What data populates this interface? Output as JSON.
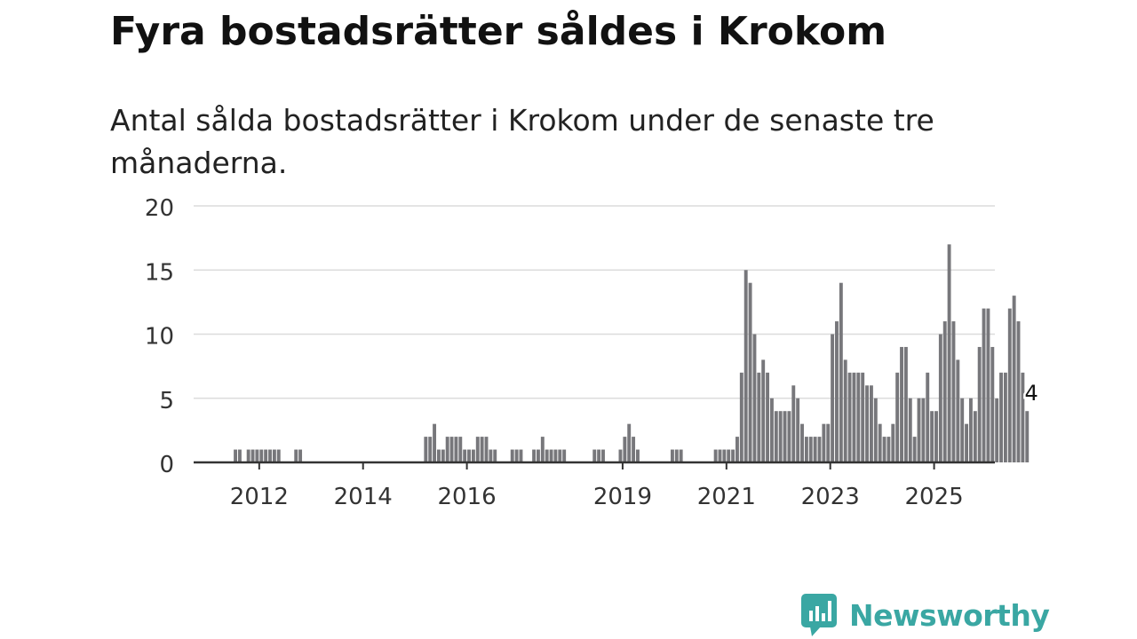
{
  "title": "Fyra bostadsrätter såldes i Krokom",
  "subtitle": "Antal sålda bostadsrätter i Krokom under de senaste tre månaderna.",
  "brand": {
    "name": "Newsworthy",
    "color": "#3aa7a3"
  },
  "colors": {
    "bar": "#77777b",
    "highlight": "#139e9a",
    "grid": "#dcdcdc",
    "axis": "#333333",
    "text": "#333333"
  },
  "chart_data": {
    "type": "bar",
    "title": "Fyra bostadsrätter såldes i Krokom",
    "subtitle": "Antal sålda bostadsrätter i Krokom under de senaste tre månaderna.",
    "xlabel": "",
    "ylabel": "",
    "ylim": [
      0,
      20
    ],
    "yticks": [
      0,
      5,
      10,
      15,
      20
    ],
    "xticks": [
      {
        "label": "2012",
        "x": 2012.0
      },
      {
        "label": "2014",
        "x": 2014.0
      },
      {
        "label": "2016",
        "x": 2016.0
      },
      {
        "label": "2019",
        "x": 2019.0
      },
      {
        "label": "2021",
        "x": 2021.0
      },
      {
        "label": "2023",
        "x": 2023.0
      },
      {
        "label": "2025",
        "x": 2025.0
      }
    ],
    "x_range": [
      2011.25,
      2026.83
    ],
    "x_start": 2011.25,
    "x_step": 0.08333,
    "grid": true,
    "values": [
      0,
      0,
      0,
      1,
      1,
      0,
      1,
      1,
      1,
      1,
      1,
      1,
      1,
      1,
      0,
      0,
      0,
      1,
      1,
      0,
      0,
      0,
      0,
      0,
      0,
      0,
      0,
      0,
      0,
      0,
      0,
      0,
      0,
      0,
      0,
      0,
      0,
      0,
      0,
      0,
      0,
      0,
      0,
      0,
      0,
      0,
      0,
      2,
      2,
      3,
      1,
      1,
      2,
      2,
      2,
      2,
      1,
      1,
      1,
      2,
      2,
      2,
      1,
      1,
      0,
      0,
      0,
      1,
      1,
      1,
      0,
      0,
      1,
      1,
      2,
      1,
      1,
      1,
      1,
      1,
      0,
      0,
      0,
      0,
      0,
      0,
      1,
      1,
      1,
      0,
      0,
      0,
      1,
      2,
      3,
      2,
      1,
      0,
      0,
      0,
      0,
      0,
      0,
      0,
      1,
      1,
      1,
      0,
      0,
      0,
      0,
      0,
      0,
      0,
      1,
      1,
      1,
      1,
      1,
      2,
      7,
      15,
      14,
      10,
      7,
      8,
      7,
      5,
      4,
      4,
      4,
      4,
      6,
      5,
      3,
      2,
      2,
      2,
      2,
      3,
      3,
      10,
      11,
      14,
      8,
      7,
      7,
      7,
      7,
      6,
      6,
      5,
      3,
      2,
      2,
      3,
      7,
      9,
      9,
      5,
      2,
      5,
      5,
      7,
      4,
      4,
      10,
      11,
      17,
      11,
      8,
      5,
      3,
      5,
      4,
      9,
      12,
      12,
      9,
      5,
      7,
      7,
      12,
      13,
      11,
      7,
      4
    ],
    "highlight": {
      "index": 187,
      "value": 4,
      "label": "4"
    }
  }
}
